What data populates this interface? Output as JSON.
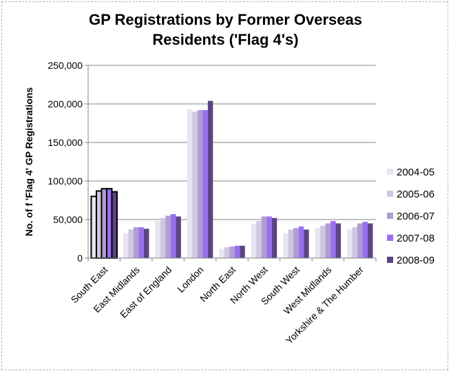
{
  "chart_data": {
    "type": "bar",
    "title_line1": "GP Registrations by Former Overseas",
    "title_line2": "Residents ('Flag 4's)",
    "ylabel": "No. of f 'Flag 4' GP Registrations",
    "xlabel": "",
    "ylim": [
      0,
      250000
    ],
    "yticks": [
      "0",
      "50,000",
      "100,000",
      "150,000",
      "200,000",
      "250,000"
    ],
    "grid": true,
    "legend_position": "right",
    "categories": [
      "South East",
      "East Midlands",
      "East of England",
      "London",
      "North East",
      "North West",
      "South West",
      "West Midlands",
      "Yorkshire & The Humber"
    ],
    "highlighted_category": "South East",
    "series": [
      {
        "name": "2004-05",
        "color": "#e8e4f0",
        "values": [
          80000,
          32000,
          48000,
          193000,
          12000,
          44000,
          32000,
          39000,
          37000
        ]
      },
      {
        "name": "2005-06",
        "color": "#cec6e2",
        "values": [
          87000,
          37000,
          52000,
          190000,
          14000,
          48000,
          37000,
          42000,
          40000
        ]
      },
      {
        "name": "2006-07",
        "color": "#ad9fd0",
        "values": [
          90000,
          40000,
          55000,
          192000,
          15000,
          54000,
          39000,
          45000,
          45000
        ]
      },
      {
        "name": "2007-08",
        "color": "#9b6ef0",
        "values": [
          90000,
          40000,
          57000,
          192000,
          16000,
          54000,
          41000,
          48000,
          47000
        ]
      },
      {
        "name": "2008-09",
        "color": "#5b4585",
        "values": [
          86000,
          38000,
          54000,
          204000,
          16000,
          52000,
          37000,
          45000,
          45000
        ]
      }
    ]
  }
}
